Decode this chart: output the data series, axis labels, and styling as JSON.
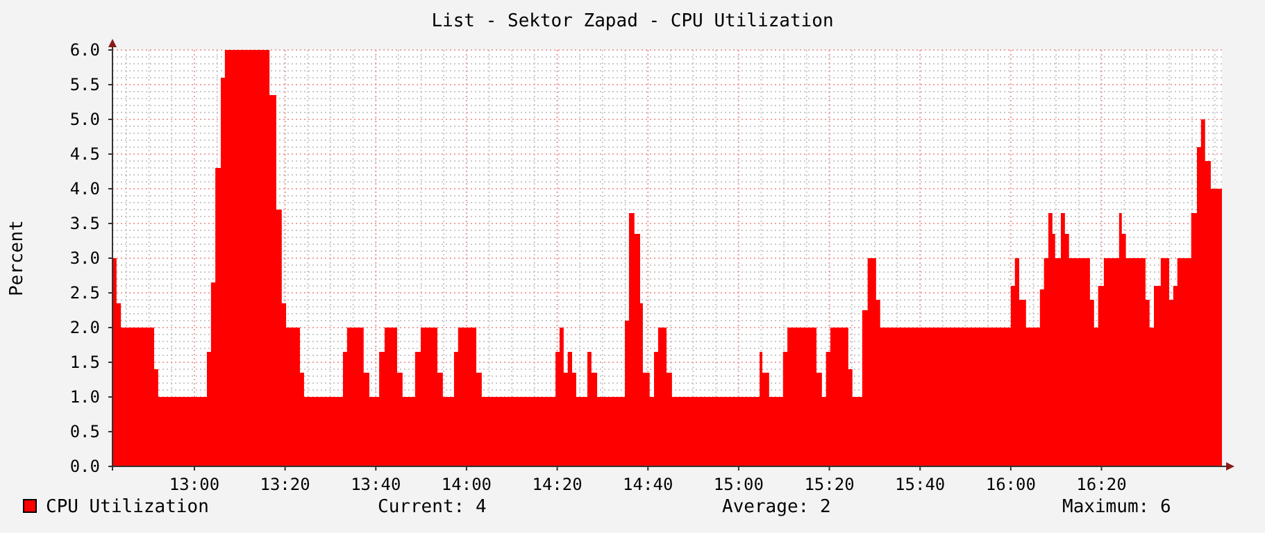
{
  "chart_data": {
    "type": "area",
    "title": "List - Sektor Zapad - CPU Utilization",
    "ylabel": "Percent",
    "x": [
      12.699,
      12.714,
      12.73,
      12.852,
      12.867,
      13.046,
      13.061,
      13.077,
      13.097,
      13.112,
      13.276,
      13.301,
      13.321,
      13.337,
      13.388,
      13.403,
      13.546,
      13.561,
      13.622,
      13.643,
      13.679,
      13.699,
      13.745,
      13.765,
      13.811,
      13.832,
      13.893,
      13.913,
      13.954,
      13.969,
      14.036,
      14.056,
      14.327,
      14.342,
      14.357,
      14.372,
      14.388,
      14.403,
      14.444,
      14.459,
      14.48,
      14.582,
      14.597,
      14.617,
      14.638,
      14.648,
      14.673,
      14.689,
      14.704,
      14.735,
      14.755,
      15.077,
      15.087,
      15.112,
      15.163,
      15.179,
      15.286,
      15.306,
      15.321,
      15.337,
      15.403,
      15.418,
      15.454,
      15.474,
      15.505,
      15.52,
      16.0,
      16.015,
      16.031,
      16.056,
      16.107,
      16.122,
      16.138,
      16.153,
      16.163,
      16.184,
      16.199,
      16.214,
      16.291,
      16.306,
      16.321,
      16.342,
      16.398,
      16.408,
      16.423,
      16.495,
      16.51,
      16.526,
      16.551,
      16.582,
      16.597,
      16.612,
      16.663,
      16.684,
      16.699,
      16.714,
      16.735,
      16.776
    ],
    "series": [
      {
        "name": "CPU Utilization",
        "color": "#ff0000",
        "values": [
          3.0,
          2.35,
          2.0,
          1.4,
          1.0,
          1.65,
          2.65,
          4.3,
          5.6,
          6.0,
          5.35,
          3.7,
          2.35,
          2.0,
          1.35,
          1.0,
          1.65,
          2.0,
          1.35,
          1.0,
          1.65,
          2.0,
          1.35,
          1.0,
          1.65,
          2.0,
          1.35,
          1.0,
          1.65,
          2.0,
          1.35,
          1.0,
          1.65,
          2.0,
          1.35,
          1.65,
          1.35,
          1.0,
          1.65,
          1.35,
          1.0,
          2.1,
          3.65,
          3.35,
          2.35,
          1.35,
          1.0,
          1.65,
          2.0,
          1.35,
          1.0,
          1.65,
          1.35,
          1.0,
          1.65,
          2.0,
          1.35,
          1.0,
          1.65,
          2.0,
          1.4,
          1.0,
          2.25,
          3.0,
          2.4,
          2.0,
          2.6,
          3.0,
          2.4,
          2.0,
          2.55,
          3.0,
          3.65,
          3.35,
          3.0,
          3.65,
          3.35,
          3.0,
          2.4,
          2.0,
          2.6,
          3.0,
          3.65,
          3.35,
          3.0,
          2.4,
          2.0,
          2.6,
          3.0,
          2.4,
          2.6,
          3.0,
          3.65,
          4.6,
          5.0,
          4.4,
          4.0,
          4.0
        ]
      }
    ],
    "xlim": [
      12.699,
      16.776
    ],
    "xticks": [
      {
        "value": 13,
        "label": "13:00"
      },
      {
        "value": 13.3333,
        "label": "13:20"
      },
      {
        "value": 13.6667,
        "label": "13:40"
      },
      {
        "value": 14,
        "label": "14:00"
      },
      {
        "value": 14.3333,
        "label": "14:20"
      },
      {
        "value": 14.6667,
        "label": "14:40"
      },
      {
        "value": 15,
        "label": "15:00"
      },
      {
        "value": 15.3333,
        "label": "15:20"
      },
      {
        "value": 15.6667,
        "label": "15:40"
      },
      {
        "value": 16,
        "label": "16:00"
      },
      {
        "value": 16.3333,
        "label": "16:20"
      }
    ],
    "ylim": [
      0,
      6
    ],
    "yticks": [
      {
        "value": 0,
        "label": "0.0"
      },
      {
        "value": 0.5,
        "label": "0.5"
      },
      {
        "value": 1,
        "label": "1.0"
      },
      {
        "value": 1.5,
        "label": "1.5"
      },
      {
        "value": 2,
        "label": "2.0"
      },
      {
        "value": 2.5,
        "label": "2.5"
      },
      {
        "value": 3,
        "label": "3.0"
      },
      {
        "value": 3.5,
        "label": "3.5"
      },
      {
        "value": 4,
        "label": "4.0"
      },
      {
        "value": 4.5,
        "label": "4.5"
      },
      {
        "value": 5,
        "label": "5.0"
      },
      {
        "value": 5.5,
        "label": "5.5"
      },
      {
        "value": 6,
        "label": "6.0"
      }
    ],
    "grid": true,
    "legend": "bottom",
    "annotations": [
      "Current: 4",
      "Average: 2",
      "Maximum: 6"
    ]
  }
}
